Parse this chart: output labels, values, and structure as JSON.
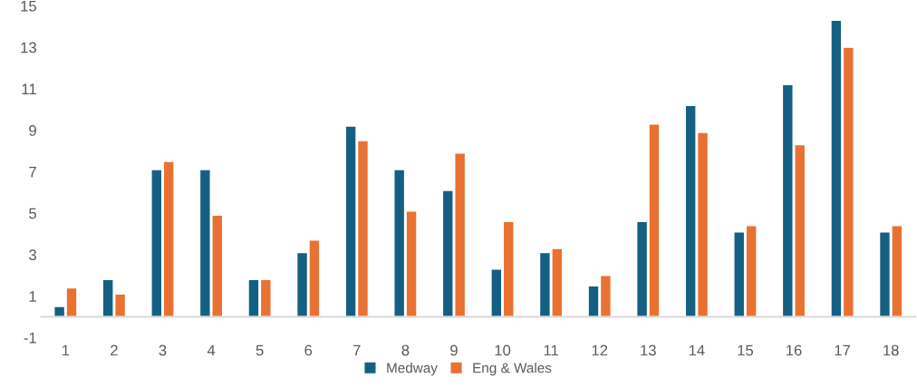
{
  "chart_data": {
    "type": "bar",
    "categories": [
      "1",
      "2",
      "3",
      "4",
      "5",
      "6",
      "7",
      "8",
      "9",
      "10",
      "11",
      "12",
      "13",
      "14",
      "15",
      "16",
      "17",
      "18"
    ],
    "series": [
      {
        "name": "Medway",
        "color": "#156082",
        "values": [
          0.5,
          1.8,
          7.1,
          7.1,
          1.8,
          3.1,
          9.2,
          7.1,
          6.1,
          2.3,
          3.1,
          1.5,
          4.6,
          10.2,
          4.1,
          11.2,
          14.3,
          4.1
        ]
      },
      {
        "name": "Eng & Wales",
        "color": "#e97132",
        "values": [
          1.4,
          1.1,
          7.5,
          4.9,
          1.8,
          3.7,
          8.5,
          5.1,
          7.9,
          4.6,
          3.3,
          2.0,
          9.3,
          8.9,
          4.4,
          8.3,
          13.0,
          4.4
        ]
      }
    ],
    "ylim": [
      -1,
      15
    ],
    "yticks": [
      -1,
      1,
      3,
      5,
      7,
      9,
      11,
      13,
      15
    ],
    "grid": false,
    "legend": "bottom"
  }
}
